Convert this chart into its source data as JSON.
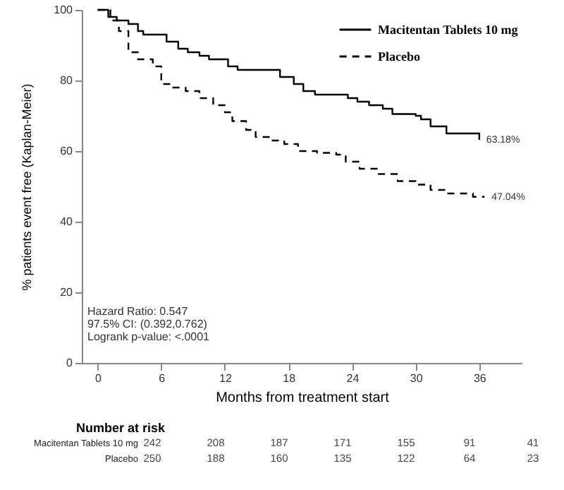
{
  "chart_data": {
    "type": "step",
    "xlabel": "Months from treatment start",
    "ylabel": "% patients event free (Kaplan-Meier)",
    "x": [
      0,
      1,
      1.8,
      2.9,
      3.8,
      4.3,
      6.5,
      7.6,
      8.5,
      9.6,
      10.5,
      12.3,
      13.2,
      17.2,
      18.5,
      19.4,
      20.5,
      23.6,
      24.5,
      25.6,
      26.9,
      27.8,
      30,
      30.5,
      31.4,
      32.9,
      36
    ],
    "series": [
      {
        "name": "Macitentan Tablets 10 mg",
        "color": "#000000",
        "line_style": "solid",
        "values": [
          100,
          98,
          97,
          96,
          94,
          93,
          91,
          89,
          88,
          87,
          86,
          84,
          83,
          81,
          79,
          77,
          76,
          75,
          74,
          73,
          72,
          70.5,
          70,
          69,
          67,
          65,
          63.18
        ]
      },
      {
        "name": "Placebo",
        "color": "#000000",
        "line_style": "dashed",
        "x": [
          0,
          1.2,
          2,
          2.9,
          3.8,
          5.2,
          6,
          6.9,
          8.3,
          9.6,
          10.9,
          12,
          12.7,
          14,
          14.9,
          16.3,
          17.6,
          18.9,
          20.7,
          22.5,
          23.4,
          24.7,
          26.5,
          28.3,
          30,
          31.4,
          32.9,
          35.4,
          36.5
        ],
        "values": [
          100,
          97,
          94,
          88,
          86,
          84,
          79,
          78,
          77,
          75,
          73,
          71,
          68.5,
          66,
          64,
          63,
          62,
          60,
          59.5,
          59,
          57,
          55,
          53.5,
          51.5,
          50.5,
          49,
          48,
          47.04,
          47.04
        ]
      }
    ],
    "xlim": [
      -1.5,
      40
    ],
    "ylim": [
      0,
      100
    ],
    "xticks": [
      0,
      6,
      12,
      18,
      24,
      30,
      36
    ],
    "yticks": [
      0,
      20,
      40,
      60,
      80,
      100
    ],
    "grid": false,
    "marker": "none",
    "legend": "top right",
    "annotations": [
      "Hazard Ratio: 0.547",
      "97.5% CI: (0.392,0.762)",
      "Logrank p-value: <.0001",
      {
        "text": "63.18%",
        "x": 36,
        "y": 63.18
      },
      {
        "text": "47.04%",
        "x": 36.5,
        "y": 47.04
      },
      "Number at risk",
      "Macitentan Tablets 10 mg",
      "242",
      "208",
      "187",
      "171",
      "155",
      "91",
      "41",
      "Placebo",
      "250",
      "188",
      "160",
      "135",
      "122",
      "64",
      "23"
    ]
  }
}
